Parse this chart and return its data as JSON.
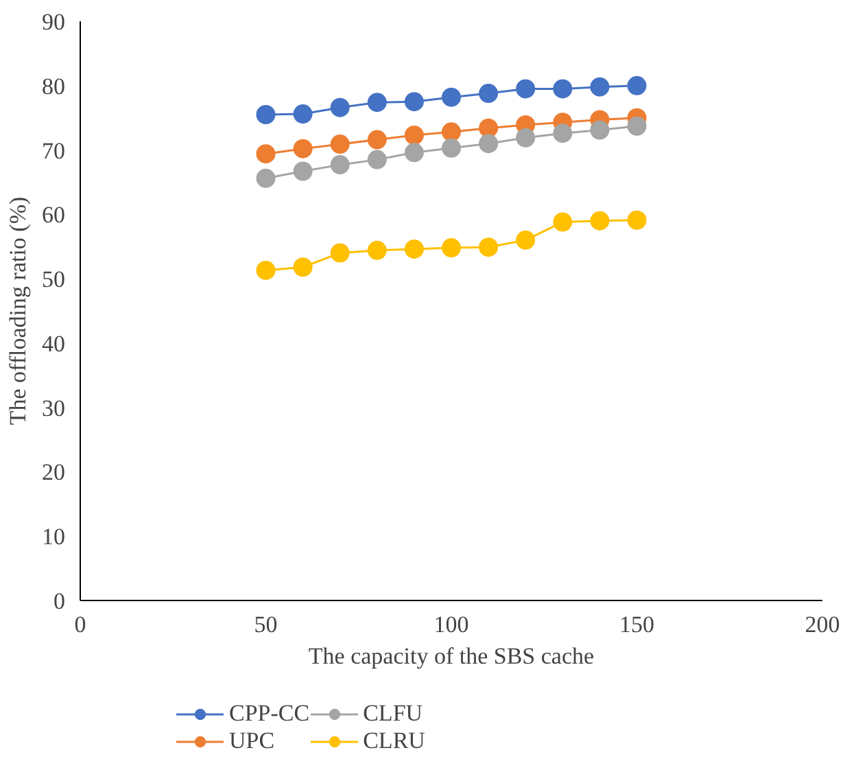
{
  "chart_data": {
    "type": "line",
    "xlabel": "The capacity of the SBS cache",
    "ylabel": "The offloading ratio (%)",
    "x": [
      50,
      60,
      70,
      80,
      90,
      100,
      110,
      120,
      130,
      140,
      150
    ],
    "series": [
      {
        "name": "CPP-CC",
        "color": "#4472c4",
        "values": [
          75.5,
          75.6,
          76.6,
          77.4,
          77.5,
          78.2,
          78.8,
          79.5,
          79.5,
          79.8,
          80.0
        ]
      },
      {
        "name": "UPC",
        "color": "#ed7d31",
        "values": [
          69.4,
          70.2,
          70.9,
          71.6,
          72.3,
          72.8,
          73.4,
          73.9,
          74.3,
          74.7,
          75.0
        ]
      },
      {
        "name": "CLFU",
        "color": "#a5a5a5",
        "values": [
          65.6,
          66.7,
          67.7,
          68.5,
          69.6,
          70.3,
          71.0,
          71.9,
          72.6,
          73.1,
          73.7
        ]
      },
      {
        "name": "CLRU",
        "color": "#ffc000",
        "values": [
          51.3,
          51.8,
          54.0,
          54.4,
          54.6,
          54.8,
          54.9,
          56.0,
          58.8,
          59.0,
          59.1
        ]
      }
    ],
    "xlim": [
      0,
      200
    ],
    "xticks": [
      0,
      50,
      100,
      150,
      200
    ],
    "ylim": [
      0,
      90
    ],
    "yticks": [
      0,
      10,
      20,
      30,
      40,
      50,
      60,
      70,
      80,
      90
    ],
    "marker": "circle",
    "grid": false,
    "legend": "bottom"
  }
}
